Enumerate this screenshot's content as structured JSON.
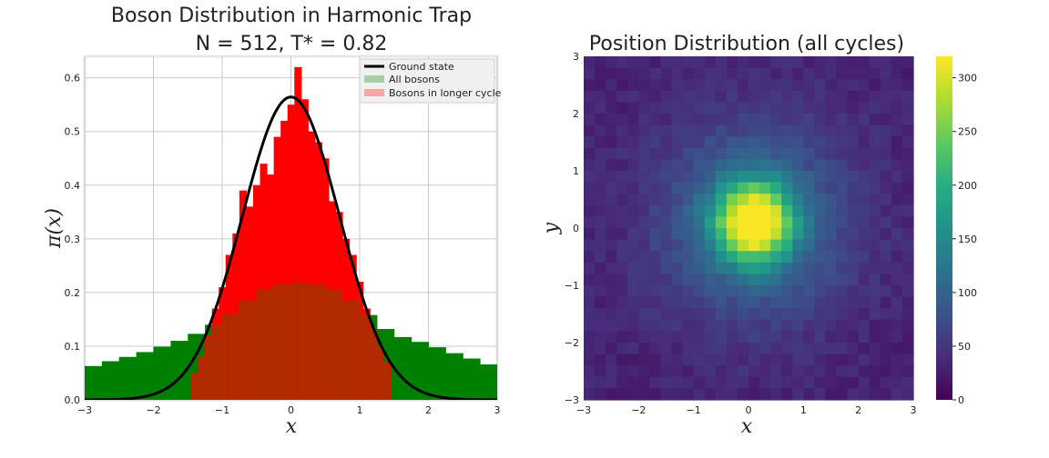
{
  "chart_data": [
    {
      "type": "histogram",
      "title_line1": "Boson Distribution in Harmonic Trap",
      "title_line2": "N = 512, T* = 0.82",
      "xlabel": "x",
      "ylabel": "π(x)",
      "xlim": [
        -3,
        3
      ],
      "ylim": [
        0,
        0.64
      ],
      "xticks": [
        "−3",
        "−2",
        "−1",
        "0",
        "1",
        "2",
        "3"
      ],
      "yticks": [
        "0.0",
        "0.1",
        "0.2",
        "0.3",
        "0.4",
        "0.5",
        "0.6"
      ],
      "grid": true,
      "legend_position": "top-right",
      "legend": [
        "Ground state",
        "All bosons",
        "Bosons in longer cycle"
      ],
      "series": [
        {
          "name": "All bosons",
          "kind": "histogram",
          "color": "#008000",
          "bin_edges": [
            -3.0,
            -2.75,
            -2.5,
            -2.25,
            -2.0,
            -1.75,
            -1.5,
            -1.25,
            -1.0,
            -0.75,
            -0.5,
            -0.25,
            0.0,
            0.25,
            0.5,
            0.75,
            1.0,
            1.25,
            1.5,
            1.75,
            2.0,
            2.25,
            2.5,
            2.75,
            3.0
          ],
          "values": [
            0.063,
            0.072,
            0.08,
            0.089,
            0.099,
            0.11,
            0.123,
            0.14,
            0.16,
            0.185,
            0.205,
            0.215,
            0.218,
            0.215,
            0.205,
            0.185,
            0.158,
            0.132,
            0.117,
            0.108,
            0.098,
            0.087,
            0.077,
            0.066
          ]
        },
        {
          "name": "Bosons in longer cycle",
          "kind": "histogram",
          "color": "#ff0000",
          "bin_edges": [
            -1.45,
            -1.35,
            -1.25,
            -1.15,
            -1.05,
            -0.95,
            -0.85,
            -0.75,
            -0.65,
            -0.55,
            -0.45,
            -0.35,
            -0.25,
            -0.15,
            -0.05,
            0.05,
            0.15,
            0.25,
            0.35,
            0.45,
            0.55,
            0.65,
            0.75,
            0.85,
            0.95,
            1.05,
            1.15,
            1.25,
            1.35,
            1.45
          ],
          "values": [
            0.05,
            0.08,
            0.12,
            0.17,
            0.21,
            0.27,
            0.31,
            0.39,
            0.36,
            0.4,
            0.44,
            0.42,
            0.49,
            0.52,
            0.55,
            0.62,
            0.56,
            0.5,
            0.48,
            0.45,
            0.37,
            0.35,
            0.3,
            0.27,
            0.22,
            0.17,
            0.13,
            0.1,
            0.07
          ]
        },
        {
          "name": "Ground state",
          "kind": "line",
          "color": "#000000",
          "formula": "exp(-x^2)/sqrt(pi)"
        }
      ]
    },
    {
      "type": "heatmap",
      "title": "Position Distribution (all cycles)",
      "xlabel": "x",
      "ylabel": "y",
      "xlim": [
        -3,
        3
      ],
      "ylim": [
        -3,
        3
      ],
      "xticks": [
        "−3",
        "−2",
        "−1",
        "0",
        "1",
        "2",
        "3"
      ],
      "yticks": [
        "3",
        "2",
        "1",
        "0",
        "−1",
        "−2",
        "−3"
      ],
      "colormap": "viridis",
      "colorbar_range": [
        0,
        320
      ],
      "colorbar_ticks": [
        "0",
        "50",
        "100",
        "150",
        "200",
        "250",
        "300"
      ],
      "grid_size": 30,
      "distribution": "centered peak near (0.1, 0.1), maximum about 318 counts, background about 40 counts at the edges"
    }
  ]
}
